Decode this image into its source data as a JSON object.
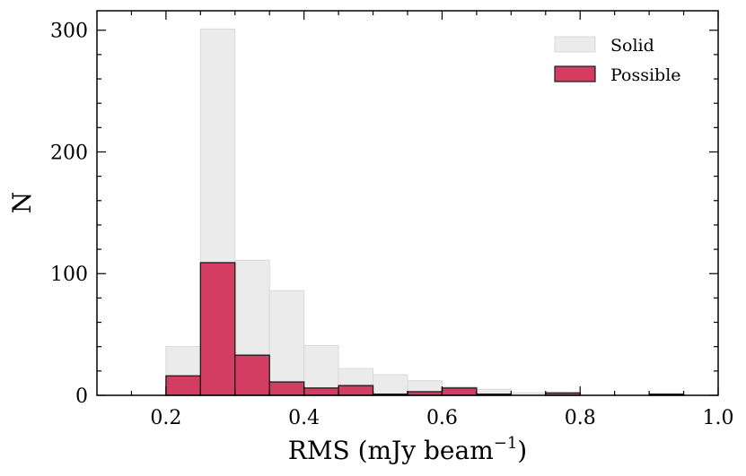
{
  "chart_data": {
    "type": "bar",
    "xlabel": "RMS (mJy beam",
    "xlabel_sup": "−1",
    "xlabel_close": ")",
    "ylabel": "N",
    "xlim": [
      0.1,
      1.0
    ],
    "ylim": [
      0,
      316
    ],
    "xticks": [
      0.2,
      0.4,
      0.6,
      0.8,
      1.0
    ],
    "xtick_labels": [
      "0.2",
      "0.4",
      "0.6",
      "0.8",
      "1.0"
    ],
    "yticks": [
      0,
      100,
      200,
      300
    ],
    "ytick_labels": [
      "0",
      "100",
      "200",
      "300"
    ],
    "bin_edges": [
      0.2,
      0.25,
      0.3,
      0.35,
      0.4,
      0.45,
      0.5,
      0.55,
      0.6,
      0.65,
      0.7,
      0.75,
      0.8,
      0.85,
      0.9,
      0.95
    ],
    "legend_position": "top-right",
    "series": [
      {
        "name": "Solid",
        "color": "#ebebeb",
        "edge": "#d9d9d9",
        "values": [
          40,
          301,
          111,
          86,
          41,
          22,
          17,
          12,
          7,
          5,
          2,
          2,
          0,
          0,
          0
        ]
      },
      {
        "name": "Possible",
        "color": "#d43d62",
        "edge": "#1a1a1a",
        "values": [
          16,
          109,
          33,
          11,
          6,
          8,
          1,
          3,
          6,
          1,
          0,
          2,
          0,
          0,
          1
        ]
      }
    ]
  }
}
